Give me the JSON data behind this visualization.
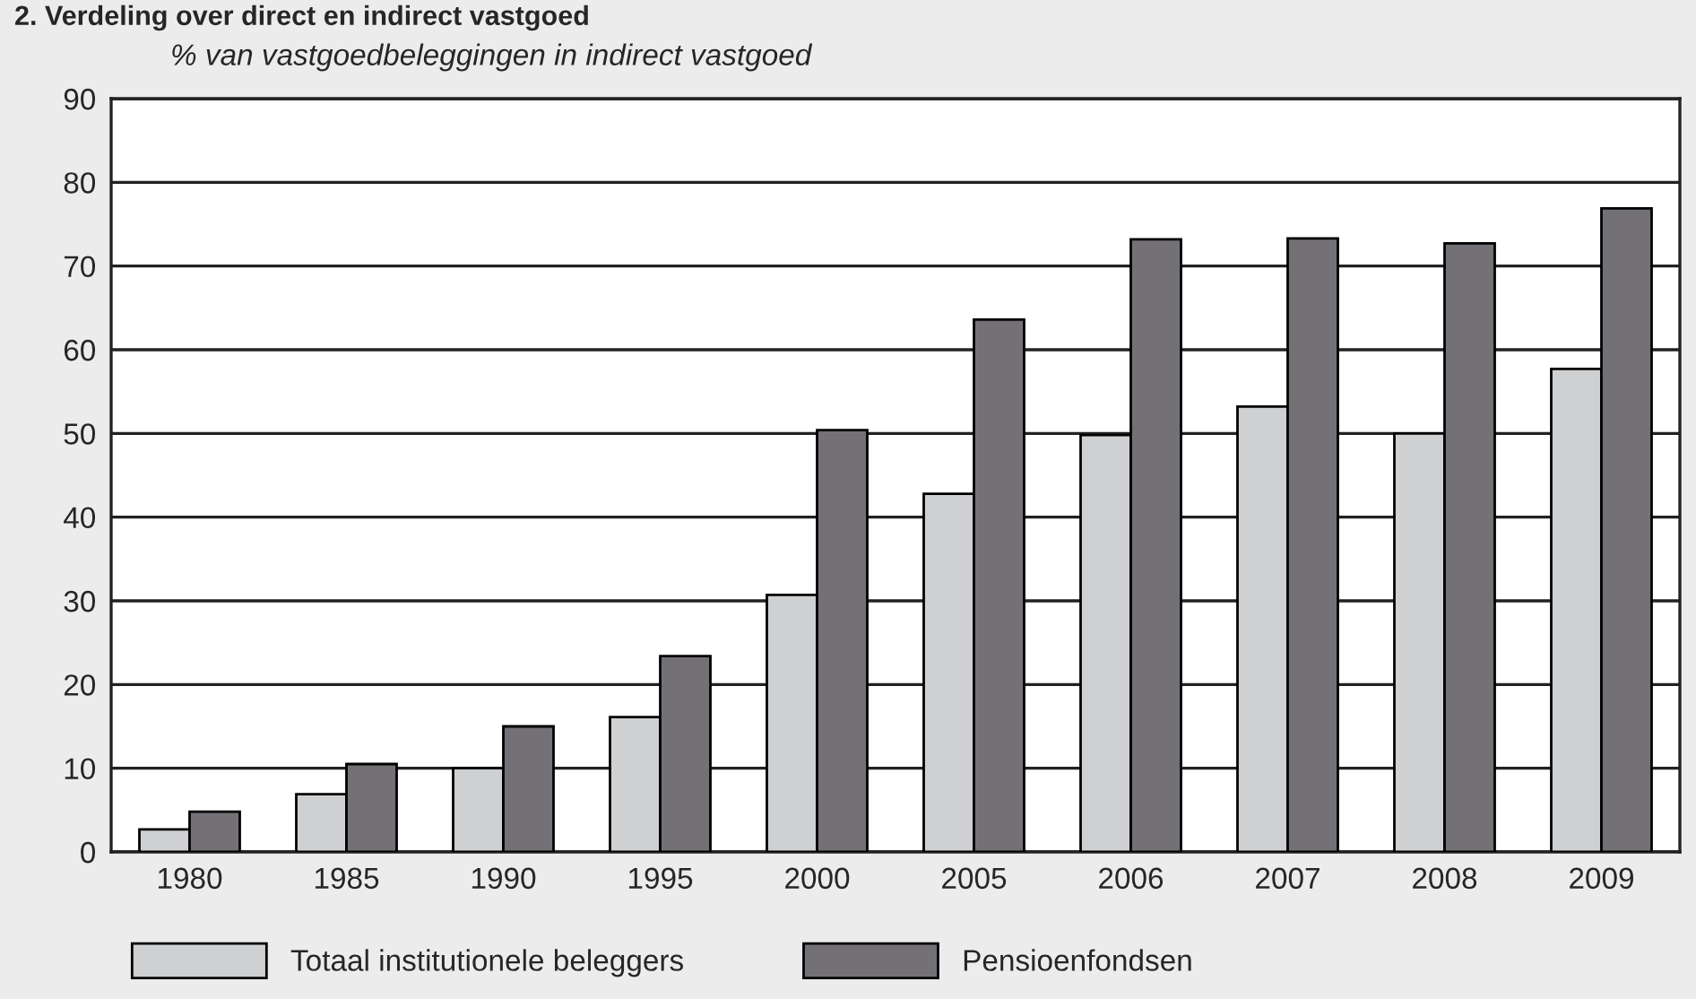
{
  "chart_data": {
    "type": "bar",
    "title": "2. Verdeling over direct en indirect vastgoed",
    "subtitle": "% van vastgoedbeleggingen in indirect vastgoed",
    "categories": [
      "1980",
      "1985",
      "1990",
      "1995",
      "2000",
      "2005",
      "2006",
      "2007",
      "2008",
      "2009"
    ],
    "series": [
      {
        "name": "Totaal institutionele beleggers",
        "color": "#cfd0d2",
        "values": [
          2.7,
          6.9,
          10,
          16.1,
          30.7,
          42.8,
          49.8,
          53.2,
          50.0,
          57.7
        ]
      },
      {
        "name": "Pensioenfondsen",
        "color": "#747176",
        "values": [
          4.8,
          10.5,
          15,
          23.4,
          50.4,
          63.6,
          73.2,
          73.3,
          72.7,
          76.9
        ]
      }
    ],
    "ylim": [
      0,
      90
    ],
    "yticks": [
      0,
      10,
      20,
      30,
      40,
      50,
      60,
      70,
      80,
      90
    ],
    "grid": "y",
    "legend": "bottom"
  }
}
